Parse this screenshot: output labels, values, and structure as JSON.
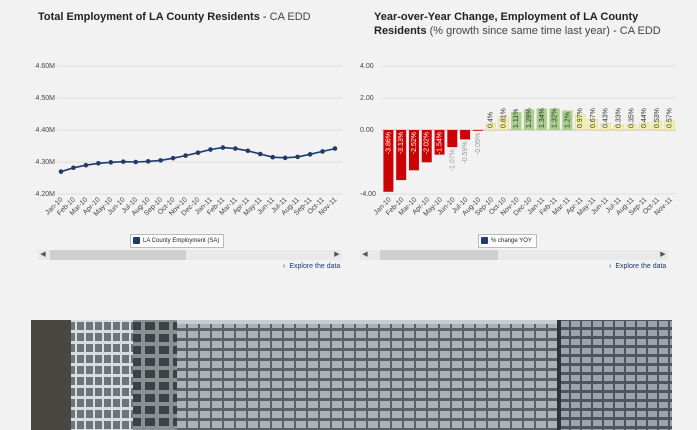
{
  "chart_data": [
    {
      "type": "line",
      "title": "Total Employment of LA County Residents",
      "source": "CA EDD",
      "legend": "LA County Employment (SA)",
      "explore": "Explore the data",
      "categories": [
        "Jan-10",
        "Feb-10",
        "Mar-10",
        "Apr-10",
        "May-10",
        "Jun-10",
        "Jul-10",
        "Aug-10",
        "Sep-10",
        "Oct-10",
        "Nov-10",
        "Dec-10",
        "Jan-11",
        "Feb-11",
        "Mar-11",
        "Apr-11",
        "May-11",
        "Jun-11",
        "Jul-11",
        "Aug-11",
        "Sep-11",
        "Oct-11",
        "Nov-11"
      ],
      "values": [
        4.27,
        4.282,
        4.29,
        4.296,
        4.299,
        4.301,
        4.3,
        4.302,
        4.305,
        4.312,
        4.32,
        4.329,
        4.339,
        4.345,
        4.342,
        4.335,
        4.325,
        4.315,
        4.313,
        4.316,
        4.324,
        4.333,
        4.342
      ],
      "ylim": [
        4.2,
        4.6
      ],
      "yticks": [
        "4.20M",
        "4.30M",
        "4.40M",
        "4.50M",
        "4.60M"
      ],
      "ytick_values": [
        4.2,
        4.3,
        4.4,
        4.5,
        4.6
      ]
    },
    {
      "type": "bar",
      "title": "Year-over-Year Change, Employment of LA County Residents",
      "title_suffix": "(% growth since same time last year)",
      "source": "CA EDD",
      "legend": "% change YOY",
      "explore": "Explore the data",
      "categories": [
        "Jan-10",
        "Feb-10",
        "Mar-10",
        "Apr-10",
        "May-10",
        "Jun-10",
        "Jul-10",
        "Aug-10",
        "Sep-10",
        "Oct-10",
        "Nov-10",
        "Dec-10",
        "Jan-11",
        "Feb-11",
        "Mar-11",
        "Apr-11",
        "May-11",
        "Jun-11",
        "Jul-11",
        "Aug-11",
        "Sep-11",
        "Oct-11",
        "Nov-11"
      ],
      "values": [
        -3.86,
        -3.13,
        -2.52,
        -2.02,
        -1.54,
        -1.07,
        -0.59,
        -0.05,
        0.4,
        0.81,
        1.11,
        1.28,
        1.34,
        1.32,
        1.2,
        0.97,
        0.67,
        0.43,
        0.33,
        0.35,
        0.44,
        0.53,
        0.57
      ],
      "labels": [
        "-3.86%",
        "-3.13%",
        "-2.52%",
        "-2.02%",
        "-1.54%",
        "-1.07%",
        "-0.59%",
        "-0.05%",
        "0.4%",
        "0.81%",
        "1.11%",
        "1.28%",
        "1.34%",
        "1.32%",
        "1.2%",
        "0.97%",
        "0.67%",
        "0.43%",
        "0.33%",
        "0.35%",
        "0.44%",
        "0.53%",
        "0.57%"
      ],
      "ylim": [
        -4,
        4
      ],
      "yticks": [
        "-4.00",
        "0.00",
        "2.00",
        "4.00"
      ],
      "ytick_values": [
        -4,
        0,
        2,
        4
      ],
      "colors": {
        "negative": "#cc0000",
        "small": "#f5f0a8",
        "positive": "#a8d08d"
      }
    }
  ]
}
